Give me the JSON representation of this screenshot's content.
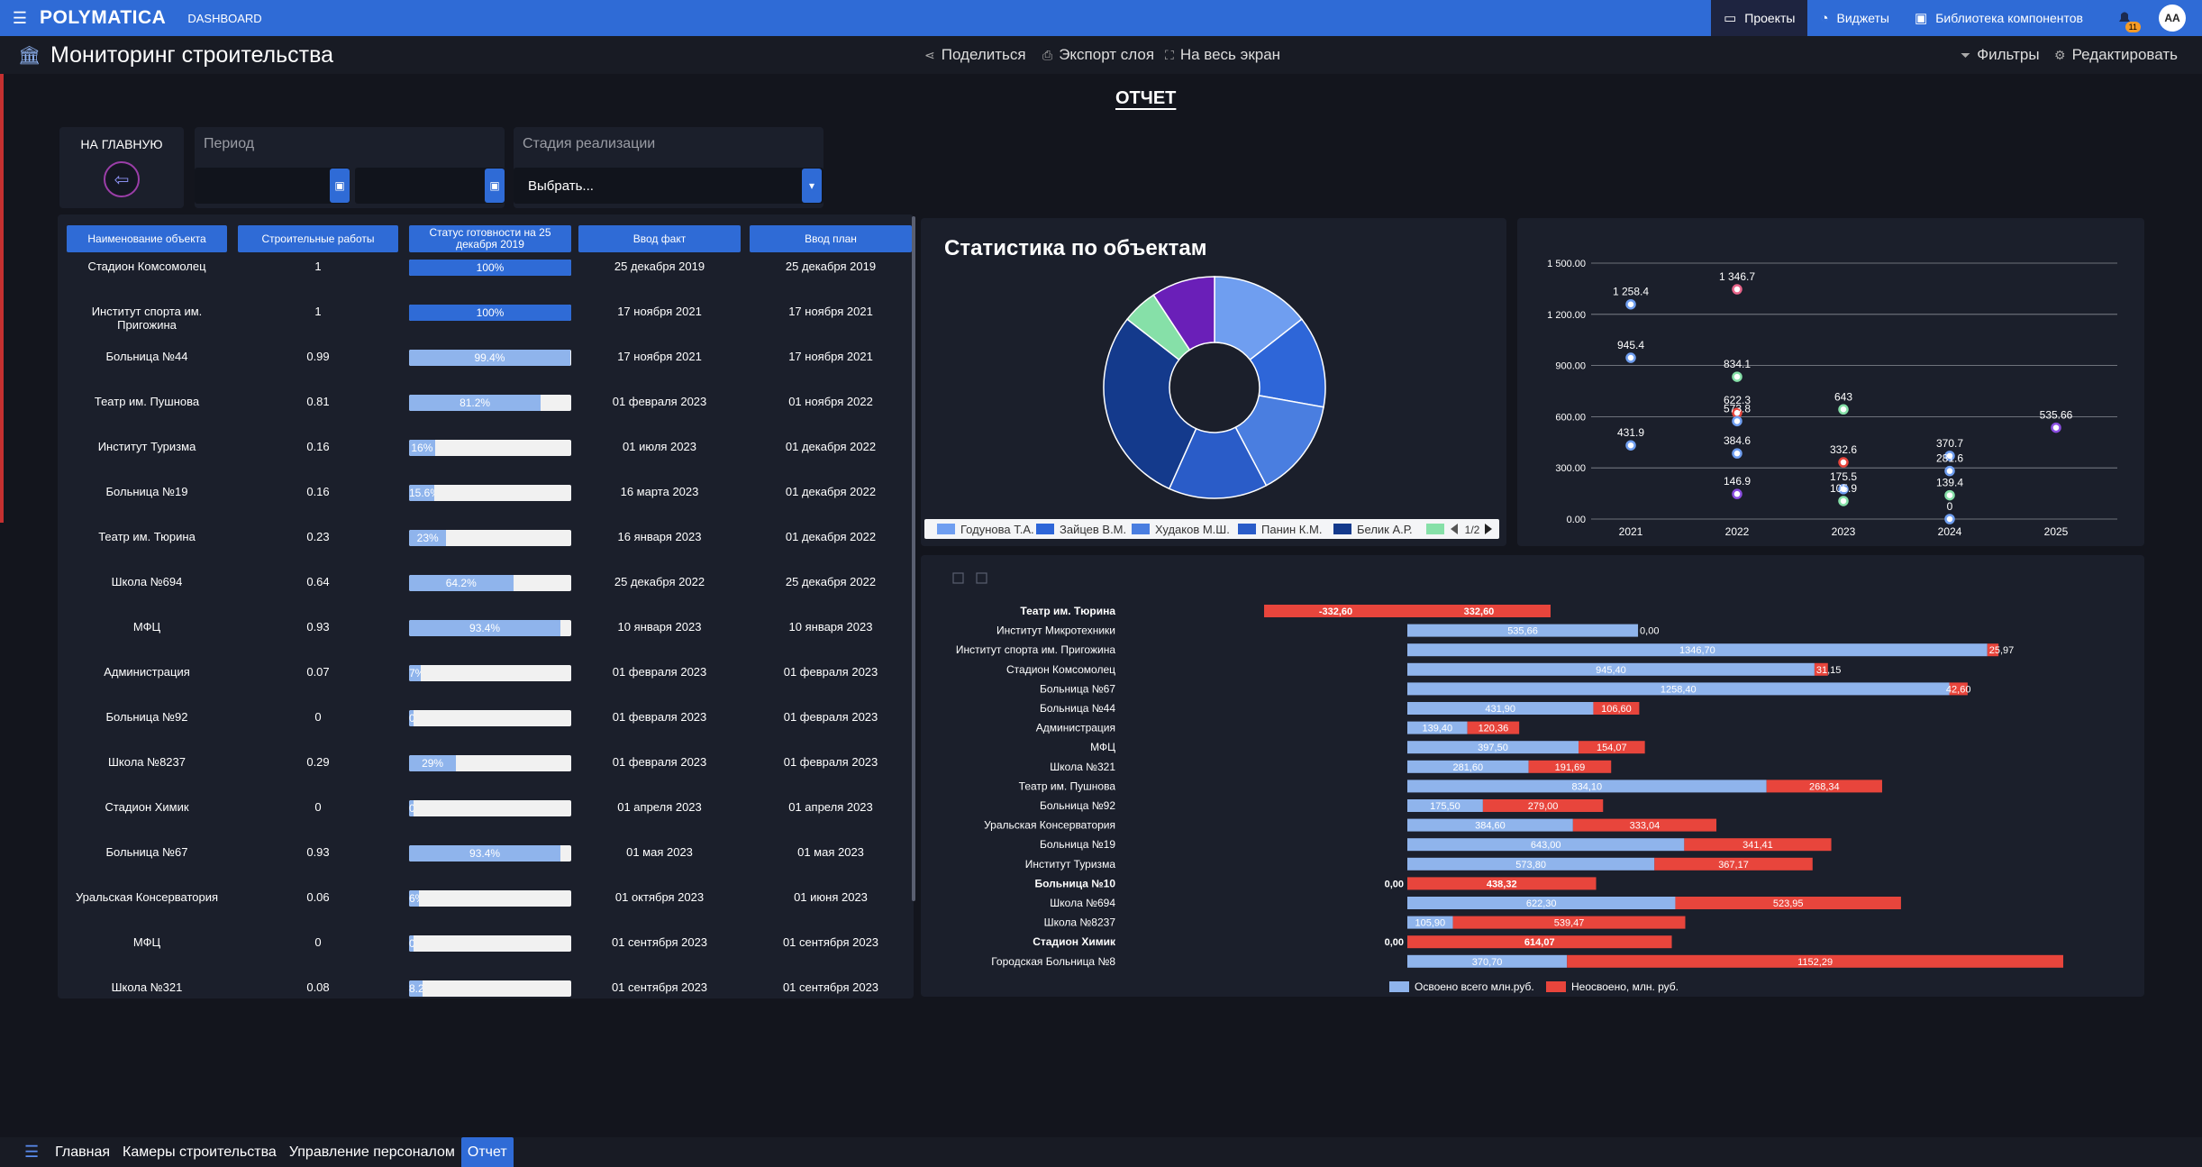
{
  "topbar": {
    "logo": "POLYMATICA",
    "section": "DASHBOARD",
    "nav": [
      {
        "label": "Проекты",
        "icon": "monitor-icon",
        "active": true
      },
      {
        "label": "Виджеты",
        "icon": "gauge-icon",
        "active": false
      },
      {
        "label": "Библиотека компонентов",
        "icon": "library-icon",
        "active": false
      }
    ],
    "notifications": "11",
    "avatar": "AA"
  },
  "header": {
    "title": "Мониторинг строительства",
    "share": "Поделиться",
    "export": "Экспорт слоя",
    "fullscreen": "На весь экран",
    "filters": "Фильтры",
    "edit": "Редактировать"
  },
  "report_title": "ОТЧЕТ",
  "home": {
    "label": "НА ГЛАВНУЮ"
  },
  "period": {
    "label": "Период"
  },
  "stage": {
    "label": "Стадия реализации",
    "value": "Выбрать..."
  },
  "table": {
    "headers": [
      "Наименование объекта",
      "Строительные работы",
      "Статус готовности на 25 декабря 2019",
      "Ввод факт",
      "Ввод план"
    ],
    "rows": [
      {
        "name": "Стадион Комсомолец",
        "work": "1",
        "pct": 100,
        "label": "100%",
        "fact": "25 декабря 2019",
        "plan": "25 декабря 2019"
      },
      {
        "name": "Институт спорта им. Пригожина",
        "work": "1",
        "pct": 100,
        "label": "100%",
        "fact": "17 ноября 2021",
        "plan": "17 ноября 2021"
      },
      {
        "name": "Больница №44",
        "work": "0.99",
        "pct": 99.4,
        "label": "99.4%",
        "fact": "17 ноября 2021",
        "plan": "17 ноября 2021"
      },
      {
        "name": "Театр им. Пушнова",
        "work": "0.81",
        "pct": 81.2,
        "label": "81.2%",
        "fact": "01 февраля 2023",
        "plan": "01 ноября 2022"
      },
      {
        "name": "Институт Туризма",
        "work": "0.16",
        "pct": 16,
        "label": "16%",
        "fact": "01 июля 2023",
        "plan": "01 декабря 2022"
      },
      {
        "name": "Больница №19",
        "work": "0.16",
        "pct": 15.6,
        "label": "15.6%",
        "fact": "16 марта 2023",
        "plan": "01 декабря 2022"
      },
      {
        "name": "Театр им. Тюрина",
        "work": "0.23",
        "pct": 23,
        "label": "23%",
        "fact": "16 января 2023",
        "plan": "01 декабря 2022"
      },
      {
        "name": "Школа №694",
        "work": "0.64",
        "pct": 64.2,
        "label": "64.2%",
        "fact": "25 декабря 2022",
        "plan": "25 декабря 2022"
      },
      {
        "name": "МФЦ",
        "work": "0.93",
        "pct": 93.4,
        "label": "93.4%",
        "fact": "10 января 2023",
        "plan": "10 января 2023"
      },
      {
        "name": "Администрация",
        "work": "0.07",
        "pct": 7,
        "label": "7%",
        "fact": "01 февраля 2023",
        "plan": "01 февраля 2023"
      },
      {
        "name": "Больница №92",
        "work": "0",
        "pct": 0,
        "label": "0%",
        "fact": "01 февраля 2023",
        "plan": "01 февраля 2023"
      },
      {
        "name": "Школа №8237",
        "work": "0.29",
        "pct": 29,
        "label": "29%",
        "fact": "01 февраля 2023",
        "plan": "01 февраля 2023"
      },
      {
        "name": "Стадион Химик",
        "work": "0",
        "pct": 0,
        "label": "0%",
        "fact": "01 апреля 2023",
        "plan": "01 апреля 2023"
      },
      {
        "name": "Больница №67",
        "work": "0.93",
        "pct": 93.4,
        "label": "93.4%",
        "fact": "01 мая 2023",
        "plan": "01 мая 2023"
      },
      {
        "name": "Уральская Консерватория",
        "work": "0.06",
        "pct": 6,
        "label": "6%",
        "fact": "01 октября 2023",
        "plan": "01 июня 2023"
      },
      {
        "name": "МФЦ",
        "work": "0",
        "pct": 0,
        "label": "0%",
        "fact": "01 сентября 2023",
        "plan": "01 сентября 2023"
      },
      {
        "name": "Школа №321",
        "work": "0.08",
        "pct": 8.2,
        "label": "8.2%",
        "fact": "01 сентября 2023",
        "plan": "01 сентября 2023"
      }
    ]
  },
  "pie_title": "Статистика по объектам",
  "pager": "1/2",
  "bottom_tabs": [
    {
      "label": "Главная",
      "active": false
    },
    {
      "label": "Камеры строительства",
      "active": false
    },
    {
      "label": "Управление персоналом",
      "active": false
    },
    {
      "label": "Отчет",
      "active": true
    }
  ],
  "colors": {
    "accent": "#2f6bd6",
    "light_blue": "#8fb4ec",
    "red": "#e8453c"
  },
  "chart_data": [
    {
      "type": "pie",
      "title": "Статистика по объектам",
      "donut": true,
      "legend": [
        "Годунова Т.А.",
        "Зайцев В.М.",
        "Худаков М.Ш.",
        "Панин К.М.",
        "Белик А.Р."
      ],
      "slices": [
        {
          "value": 14,
          "color": "#6f9ef0"
        },
        {
          "value": 13,
          "color": "#2e66d8"
        },
        {
          "value": 14,
          "color": "#4a7ee0"
        },
        {
          "value": 14,
          "color": "#2a5cc8"
        },
        {
          "value": 28,
          "color": "#143a8c"
        },
        {
          "value": 5,
          "color": "#86e0a8"
        },
        {
          "value": 9,
          "color": "#6a1fb8"
        }
      ]
    },
    {
      "type": "scatter",
      "x": [
        2021,
        2022,
        2023,
        2024,
        2025
      ],
      "ylim": [
        0,
        1500
      ],
      "yticks": [
        "0.00",
        "300.00",
        "600.00",
        "900.00",
        "1 200.00",
        "1 500.00"
      ],
      "xticks": [
        "2021",
        "2022",
        "2023",
        "2024",
        "2025"
      ],
      "grid": true,
      "points": [
        {
          "x": 2021,
          "y": 1258.4,
          "label": "1 258.4",
          "color": "#6f9ef0"
        },
        {
          "x": 2021,
          "y": 945.4,
          "label": "945.4",
          "color": "#6f9ef0"
        },
        {
          "x": 2021,
          "y": 431.9,
          "label": "431.9",
          "color": "#6f9ef0"
        },
        {
          "x": 2022,
          "y": 1346.7,
          "label": "1 346.7",
          "color": "#e8658a"
        },
        {
          "x": 2022,
          "y": 834.1,
          "label": "834.1",
          "color": "#86e0a8"
        },
        {
          "x": 2022,
          "y": 622.3,
          "label": "622.3",
          "color": "#e8453c"
        },
        {
          "x": 2022,
          "y": 573.8,
          "label": "573.8",
          "color": "#6f9ef0"
        },
        {
          "x": 2022,
          "y": 384.6,
          "label": "384.6",
          "color": "#6f9ef0"
        },
        {
          "x": 2022,
          "y": 146.9,
          "label": "146.9",
          "color": "#8a4ee0"
        },
        {
          "x": 2023,
          "y": 643,
          "label": "643",
          "color": "#86e0a8"
        },
        {
          "x": 2023,
          "y": 332.6,
          "label": "332.6",
          "color": "#e8453c"
        },
        {
          "x": 2023,
          "y": 175.5,
          "label": "175.5",
          "color": "#6f9ef0"
        },
        {
          "x": 2023,
          "y": 105.9,
          "label": "105.9",
          "color": "#86e0a8"
        },
        {
          "x": 2024,
          "y": 370.7,
          "label": "370.7",
          "color": "#6f9ef0"
        },
        {
          "x": 2024,
          "y": 281.6,
          "label": "281.6",
          "color": "#6f9ef0"
        },
        {
          "x": 2024,
          "y": 139.4,
          "label": "139.4",
          "color": "#86e0a8"
        },
        {
          "x": 2024,
          "y": 0,
          "label": "0",
          "color": "#6f9ef0"
        },
        {
          "x": 2025,
          "y": 535.66,
          "label": "535.66",
          "color": "#8a4ee0"
        }
      ]
    },
    {
      "type": "bar",
      "orientation": "horizontal",
      "stacked": true,
      "categories": [
        "Театр им. Тюрина",
        "Институт Микротехники",
        "Институт спорта им. Пригожина",
        "Стадион Комсомолец",
        "Больница №67",
        "Больница №44",
        "Администрация",
        "МФЦ",
        "Школа №321",
        "Театр им. Пушнова",
        "Больница №92",
        "Уральская Консерватория",
        "Больница №19",
        "Институт Туризма",
        "Больница №10",
        "Школа №694",
        "Школа №8237",
        "Стадион Химик",
        "Городская Больница №8"
      ],
      "bold": [
        true,
        false,
        false,
        false,
        false,
        false,
        false,
        false,
        false,
        false,
        false,
        false,
        false,
        false,
        true,
        false,
        false,
        true,
        false
      ],
      "series": [
        {
          "name": "Освоено всего млн.руб.",
          "color": "#8fb4ec",
          "values": [
            -332.6,
            535.66,
            1346.7,
            945.4,
            1258.4,
            431.9,
            139.4,
            397.5,
            281.6,
            834.1,
            175.5,
            384.6,
            643.0,
            573.8,
            0,
            622.3,
            105.9,
            0,
            370.7
          ],
          "labels": [
            "-332,60",
            "535,66",
            "1346,70",
            "945,40",
            "1258,40",
            "431,90",
            "139,40",
            "397,50",
            "281,60",
            "834,10",
            "175,50",
            "384,60",
            "643,00",
            "573,80",
            "0,00",
            "622,30",
            "105,90",
            "0,00",
            "370,70"
          ]
        },
        {
          "name": "Неосвоено, млн. руб.",
          "color": "#e8453c",
          "values": [
            332.6,
            0,
            25.97,
            31.15,
            42.6,
            106.6,
            120.36,
            154.07,
            191.69,
            268.34,
            279.0,
            333.04,
            341.41,
            367.17,
            438.32,
            523.95,
            539.47,
            614.07,
            1152.29
          ],
          "labels": [
            "332,60",
            "0,00",
            "25,97",
            "31,15",
            "42,60",
            "106,60",
            "120,36",
            "154,07",
            "191,69",
            "268,34",
            "279,00",
            "333,04",
            "341,41",
            "367,17",
            "438,32",
            "523,95",
            "539,47",
            "614,07",
            "1152,29"
          ]
        }
      ]
    }
  ]
}
